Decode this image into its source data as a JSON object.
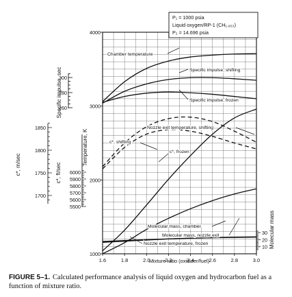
{
  "chart_data": {
    "type": "line",
    "xlabel": "Mixture ratio (oxidizer/fuel)",
    "xlim": [
      1.6,
      3.0
    ],
    "xticks": [
      "1.6",
      "1.8",
      "2.0",
      "2.2",
      "2.4",
      "2.6",
      "2.8",
      "3.0"
    ],
    "temperature_axis": {
      "label": "Temperature, K",
      "ylim": [
        1000,
        4000
      ],
      "ticks": [
        "1000",
        "2000",
        "3000",
        "4000"
      ]
    },
    "isp_axis": {
      "label": "Specific impulse, sec",
      "ticks": [
        "260",
        "280",
        "300"
      ]
    },
    "cstar_fps_axis": {
      "label": "c*, ft/sec",
      "ticks": [
        "5500",
        "5600",
        "5700",
        "5800",
        "5900",
        "6000"
      ]
    },
    "cstar_ms_axis": {
      "label": "c*, m/sec",
      "ticks": [
        "1700",
        "1750",
        "1800",
        "1850"
      ]
    },
    "molmass_axis": {
      "label": "Molecular mass",
      "ticks": [
        "10",
        "20",
        "30"
      ]
    },
    "legend_box": {
      "line1": "P₁ = 1000 psia",
      "line2": "Liquid oxygen/RP-1 (CH₁.₉₅₃)",
      "line3": "P₂ = 14.696 psia"
    },
    "series": [
      {
        "name": "Chamber temperature",
        "axis": "temperature",
        "style": "solid",
        "x": [
          1.6,
          1.8,
          2.0,
          2.2,
          2.4,
          2.6,
          2.8,
          3.0
        ],
        "y": [
          3060,
          3330,
          3510,
          3610,
          3665,
          3690,
          3705,
          3710
        ]
      },
      {
        "name": "Specific impulse, shifting",
        "axis": "temperature",
        "style": "solid",
        "x": [
          1.6,
          1.8,
          2.0,
          2.2,
          2.4,
          2.6,
          2.8,
          3.0
        ],
        "y": [
          3040,
          3200,
          3300,
          3360,
          3385,
          3385,
          3370,
          3350
        ]
      },
      {
        "name": "Specific impulse, frozen",
        "axis": "temperature",
        "style": "solid",
        "x": [
          1.6,
          1.8,
          2.0,
          2.2,
          2.4,
          2.6,
          2.8,
          3.0
        ],
        "y": [
          3050,
          3130,
          3175,
          3190,
          3180,
          3160,
          3130,
          3100
        ]
      },
      {
        "name": "Nozzle exit temperature, shifting",
        "axis": "temperature",
        "style": "solid",
        "x": [
          1.6,
          1.8,
          2.0,
          2.2,
          2.4,
          2.6,
          2.8,
          3.0
        ],
        "y": [
          1040,
          1320,
          1660,
          2010,
          2330,
          2620,
          2840,
          2960
        ]
      },
      {
        "name": "c*, shifting",
        "axis": "temperature",
        "style": "dashed",
        "x": [
          1.6,
          1.8,
          2.0,
          2.2,
          2.4,
          2.6,
          2.8,
          3.0
        ],
        "y": [
          2180,
          2500,
          2720,
          2830,
          2850,
          2790,
          2660,
          2510
        ]
      },
      {
        "name": "c*, frozen",
        "axis": "temperature",
        "style": "dashed",
        "x": [
          1.6,
          1.8,
          2.0,
          2.2,
          2.4,
          2.6,
          2.8,
          3.0
        ],
        "y": [
          2150,
          2440,
          2620,
          2680,
          2660,
          2590,
          2500,
          2420
        ]
      },
      {
        "name": "Nozzle exit temperature, frozen",
        "axis": "temperature",
        "style": "solid",
        "x": [
          1.6,
          1.8,
          2.0,
          2.2,
          2.4,
          2.6,
          2.8,
          3.0
        ],
        "y": [
          1000,
          1150,
          1330,
          1480,
          1610,
          1720,
          1810,
          1880
        ]
      },
      {
        "name": "Molecular mass, chamber",
        "axis": "molmass",
        "style": "solid",
        "x": [
          1.6,
          1.8,
          2.0,
          2.2,
          2.4,
          2.6,
          2.8,
          3.0
        ],
        "y": [
          17.5,
          18.8,
          20.0,
          21.1,
          22.0,
          22.7,
          23.2,
          23.6
        ]
      },
      {
        "name": "Molecular mass, nozzle exit",
        "axis": "molmass",
        "style": "solid",
        "x": [
          1.6,
          1.8,
          2.0,
          2.2,
          2.4,
          2.6,
          2.8,
          3.0
        ],
        "y": [
          16.2,
          17.8,
          19.5,
          21.0,
          22.2,
          23.0,
          23.6,
          24.0
        ]
      }
    ]
  },
  "caption": {
    "label": "FIGURE 5–1.",
    "text": "Calculated performance analysis of liquid oxygen and hydrocarbon fuel as a function of mixture ratio."
  }
}
